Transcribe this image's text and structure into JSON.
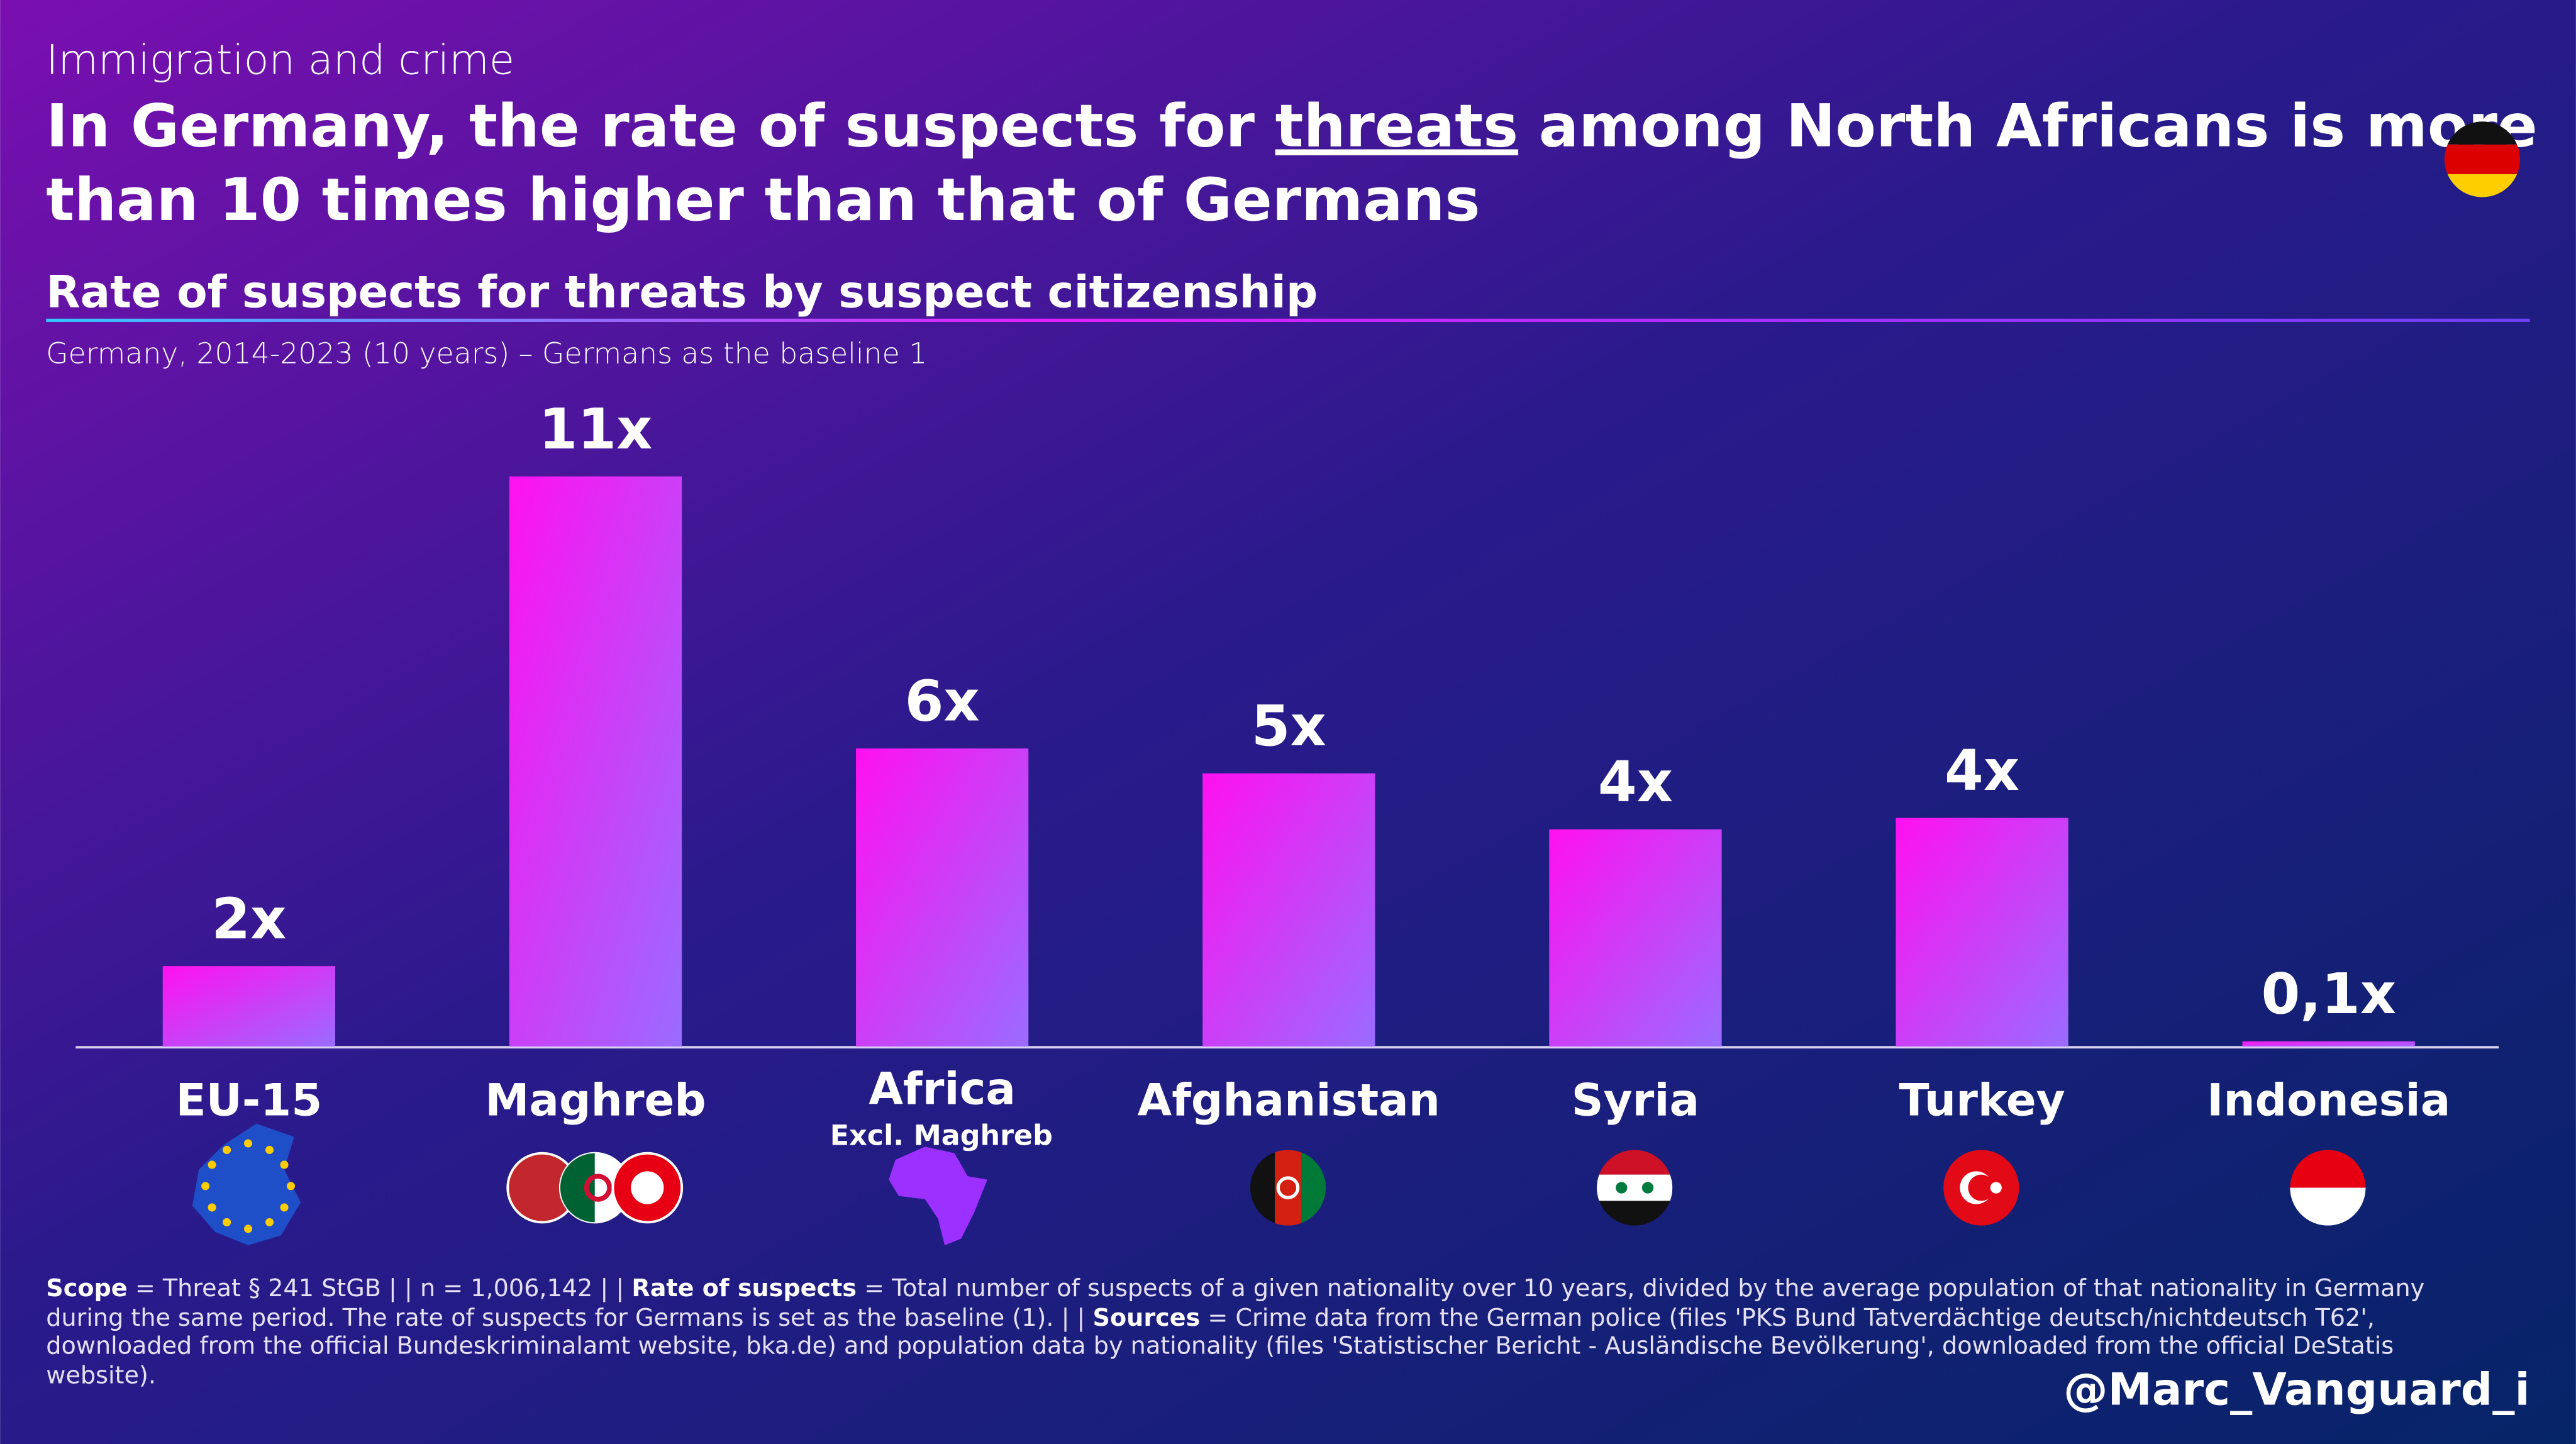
{
  "chart_data": {
    "type": "bar",
    "kicker": "Immigration and crime",
    "title": [
      [
        "In Germany, the rate of suspects for ",
        "threats",
        " among North Africans is more"
      ],
      [
        "than 10 times higher than that of Germans"
      ]
    ],
    "subtitle": "Rate of suspects for threats by suspect citizenship",
    "note": "Germany, 2014-2023 (10 years) – Germans as the baseline 1",
    "categories": [
      "EU-15",
      "Maghreb",
      "Africa",
      "Afghanistan",
      "Syria",
      "Turkey",
      "Indonesia"
    ],
    "category_note": "Excl. Maghreb",
    "values": [
      1.55,
      11,
      5.75,
      5.27,
      4.19,
      4.41,
      0.1
    ],
    "value_labels": [
      "2x",
      "11x",
      "6x",
      "5x",
      "4x",
      "4x",
      "0,1x"
    ],
    "ylim": [
      0,
      11
    ],
    "footnote": [
      {
        "text": "Scope",
        "bold": true
      },
      {
        "text": " = Threat § 241 StGB | | n = 1,006,142 | | "
      },
      {
        "text": "Rate of suspects",
        "bold": true
      },
      {
        "text": " = Total number of suspects of a given nationality over 10 years, divided by the average population of that nationality in Germany during the same period. The rate of suspects for Germans is set as the baseline (1). | | "
      },
      {
        "text": "Sources",
        "bold": true
      },
      {
        "text": " = Crime data from the German police (files 'PKS Bund Tatverdächtige deutsch/nichtdeutsch T62', downloaded from the official Bundeskriminalamt website, bka.de) and population data by nationality (files 'Statistischer Bericht - Ausländische Bevölkerung', downloaded from the official DeStatis website)."
      }
    ],
    "handle": "@Marc_Vanguard_i"
  }
}
